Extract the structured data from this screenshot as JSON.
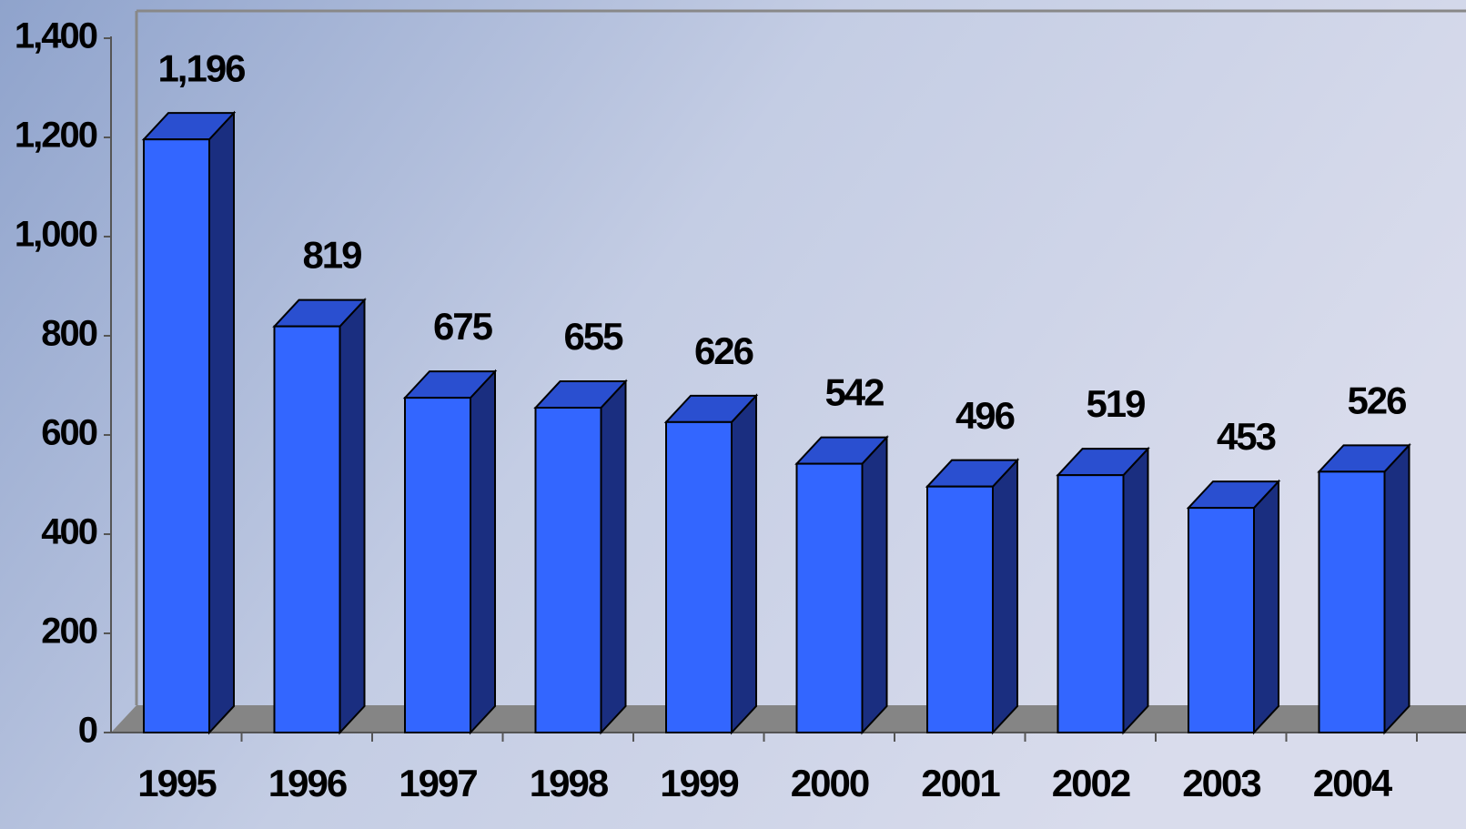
{
  "chart_data": {
    "type": "bar3d",
    "categories": [
      "1995",
      "1996",
      "1997",
      "1998",
      "1999",
      "2000",
      "2001",
      "2002",
      "2003",
      "2004"
    ],
    "values": [
      1196,
      819,
      675,
      655,
      626,
      542,
      496,
      519,
      453,
      526
    ],
    "value_labels": [
      "1,196",
      "819",
      "675",
      "655",
      "626",
      "542",
      "496",
      "519",
      "453",
      "526"
    ],
    "color": "#3366ff",
    "ylim": [
      0,
      1400
    ],
    "yticks": [
      0,
      200,
      400,
      600,
      800,
      {
        "value": 1000,
        "label": "1,000"
      },
      {
        "value": 1200,
        "label": "1,200"
      },
      {
        "value": 1400,
        "label": "1,400"
      }
    ]
  }
}
